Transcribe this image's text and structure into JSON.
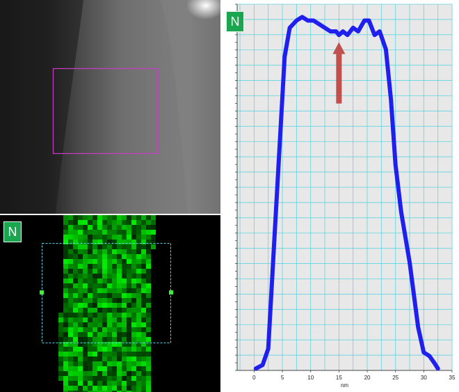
{
  "tem_image": {
    "roi_color": "#c83cc8"
  },
  "element_map": {
    "badge": "N",
    "badge_color": "#1aa54f",
    "selection_color": "#5fd7e6"
  },
  "chart_data": {
    "type": "line",
    "badge": "N",
    "xlabel": "nm",
    "ylabel": "",
    "title": "",
    "xlim": [
      -3,
      35
    ],
    "x_ticks": [
      0,
      5,
      10,
      15,
      20,
      25,
      30,
      35
    ],
    "ylim": [
      0,
      100
    ],
    "grid": true,
    "line_color": "#1f1fee",
    "grid_color": "#5fd4e0",
    "background": "#e8e8e8",
    "series": [
      {
        "x": [
          0.3,
          1.5,
          2.5,
          4.0,
          5.4,
          6.3,
          7.5,
          8.5,
          9.5,
          10.5,
          11.5,
          12.5,
          13.5,
          14.5,
          15.0,
          15.7,
          16.5,
          17.5,
          18.4,
          19.5,
          20.3,
          21.3,
          22.2,
          23.3,
          24.2,
          25.0,
          26.0,
          27.5,
          29.0,
          30.0,
          31.0,
          31.9,
          32.5
        ],
        "y": [
          0.5,
          1.5,
          6,
          48,
          87,
          95,
          97,
          98,
          97,
          97,
          96,
          95,
          94,
          94,
          93,
          94,
          93,
          95,
          94,
          97,
          97,
          93,
          94,
          89,
          75,
          57,
          44,
          30,
          12,
          5,
          4,
          2,
          0.5
        ]
      }
    ],
    "annotations": [
      {
        "type": "arrow",
        "x": 15.0,
        "y_from": 74,
        "y_to": 91,
        "color": "#c0504d"
      }
    ]
  }
}
